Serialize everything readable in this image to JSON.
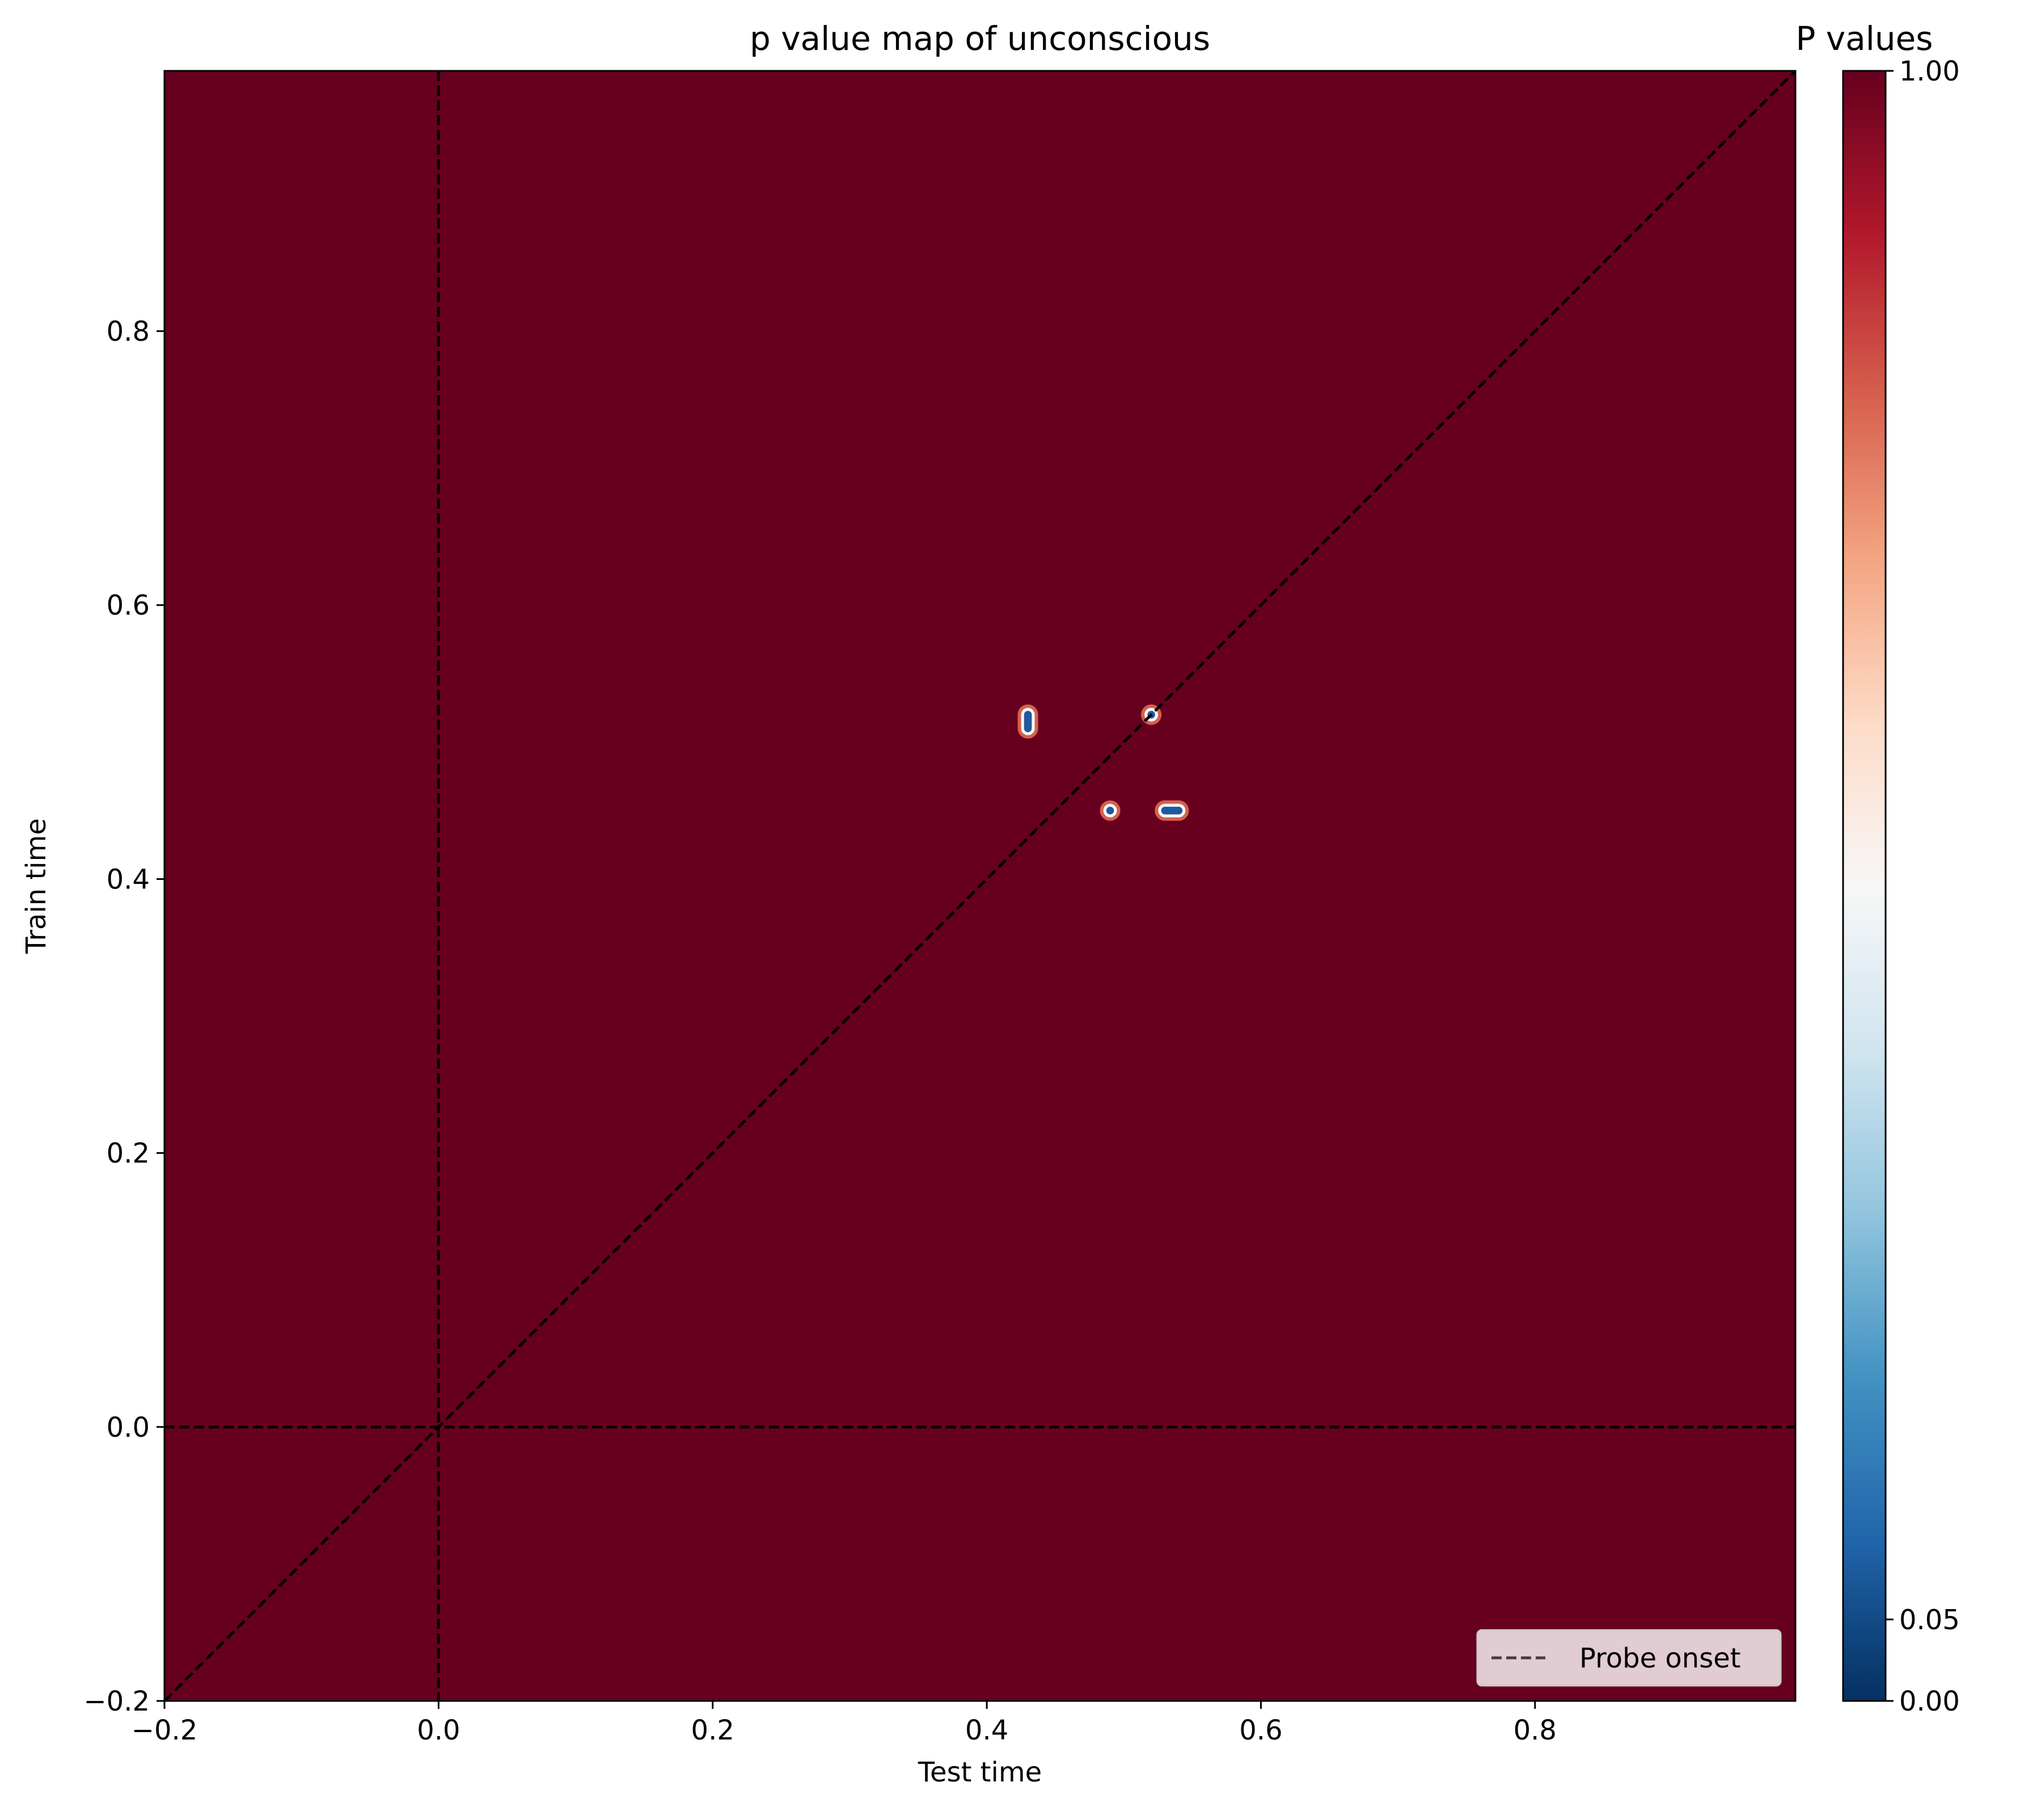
{
  "chart_data": {
    "type": "heatmap",
    "title": "p value map of unconscious",
    "xlabel": "Test time",
    "ylabel": "Train time",
    "xlim": [
      -0.2,
      0.99
    ],
    "ylim": [
      -0.2,
      0.99
    ],
    "xticks": [
      {
        "value": -0.2,
        "label": "−0.2"
      },
      {
        "value": 0.0,
        "label": "0.0"
      },
      {
        "value": 0.2,
        "label": "0.2"
      },
      {
        "value": 0.4,
        "label": "0.4"
      },
      {
        "value": 0.6,
        "label": "0.6"
      },
      {
        "value": 0.8,
        "label": "0.8"
      }
    ],
    "yticks": [
      {
        "value": -0.2,
        "label": "−0.2"
      },
      {
        "value": 0.0,
        "label": "0.0"
      },
      {
        "value": 0.2,
        "label": "0.2"
      },
      {
        "value": 0.4,
        "label": "0.4"
      },
      {
        "value": 0.6,
        "label": "0.6"
      },
      {
        "value": 0.8,
        "label": "0.8"
      }
    ],
    "background_p_value": 1.0,
    "significant_clusters": [
      {
        "x_start": 0.43,
        "x_end": 0.43,
        "y_start": 0.51,
        "y_end": 0.52,
        "p": 0.0
      },
      {
        "x_start": 0.52,
        "x_end": 0.52,
        "y_start": 0.52,
        "y_end": 0.52,
        "p": 0.0
      },
      {
        "x_start": 0.49,
        "x_end": 0.49,
        "y_start": 0.45,
        "y_end": 0.45,
        "p": 0.0
      },
      {
        "x_start": 0.53,
        "x_end": 0.54,
        "y_start": 0.45,
        "y_end": 0.45,
        "p": 0.0
      }
    ],
    "reference_lines": [
      {
        "kind": "vertical",
        "value": 0.0,
        "style": "dashed"
      },
      {
        "kind": "horizontal",
        "value": 0.0,
        "style": "dashed"
      },
      {
        "kind": "diagonal",
        "style": "dashed"
      }
    ],
    "legend": {
      "entries": [
        "Probe onset"
      ],
      "placement": "lower-right"
    },
    "colorbar": {
      "title": "P values",
      "colormap": "RdBu_r",
      "range": [
        0.0,
        1.0
      ],
      "ticks": [
        {
          "value": 0.0,
          "label": "0.00"
        },
        {
          "value": 0.05,
          "label": "0.05"
        },
        {
          "value": 1.0,
          "label": "1.00"
        }
      ]
    },
    "colors": {
      "background": "#67001f",
      "significant": "#1f5a9c",
      "reference_line": "#000000"
    }
  }
}
